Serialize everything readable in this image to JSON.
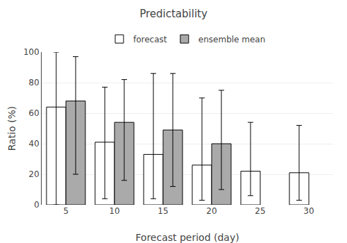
{
  "chart_data": {
    "type": "bar",
    "title": "Predictability",
    "x_label": "Forecast period (day)",
    "y_label": "Ratio (%)",
    "categories": [
      "5",
      "10",
      "15",
      "20",
      "25",
      "30"
    ],
    "series": [
      {
        "name": "forecast",
        "color": "#ffffff",
        "values": [
          64,
          41,
          33,
          26,
          22,
          21
        ],
        "min": [
          0,
          4,
          4,
          3,
          6,
          3
        ],
        "max": [
          100,
          77,
          86,
          70,
          54,
          52
        ]
      },
      {
        "name": "ensemble mean",
        "color": "#aaaaaa",
        "values": [
          68,
          54,
          49,
          40,
          null,
          null
        ],
        "min": [
          20,
          16,
          12,
          10,
          null,
          null
        ],
        "max": [
          97,
          82,
          86,
          75,
          null,
          null
        ]
      }
    ],
    "ylim": [
      0,
      100
    ],
    "yticks": [
      0,
      20,
      40,
      60,
      80,
      100
    ],
    "grid": true,
    "legend": "upper center"
  }
}
